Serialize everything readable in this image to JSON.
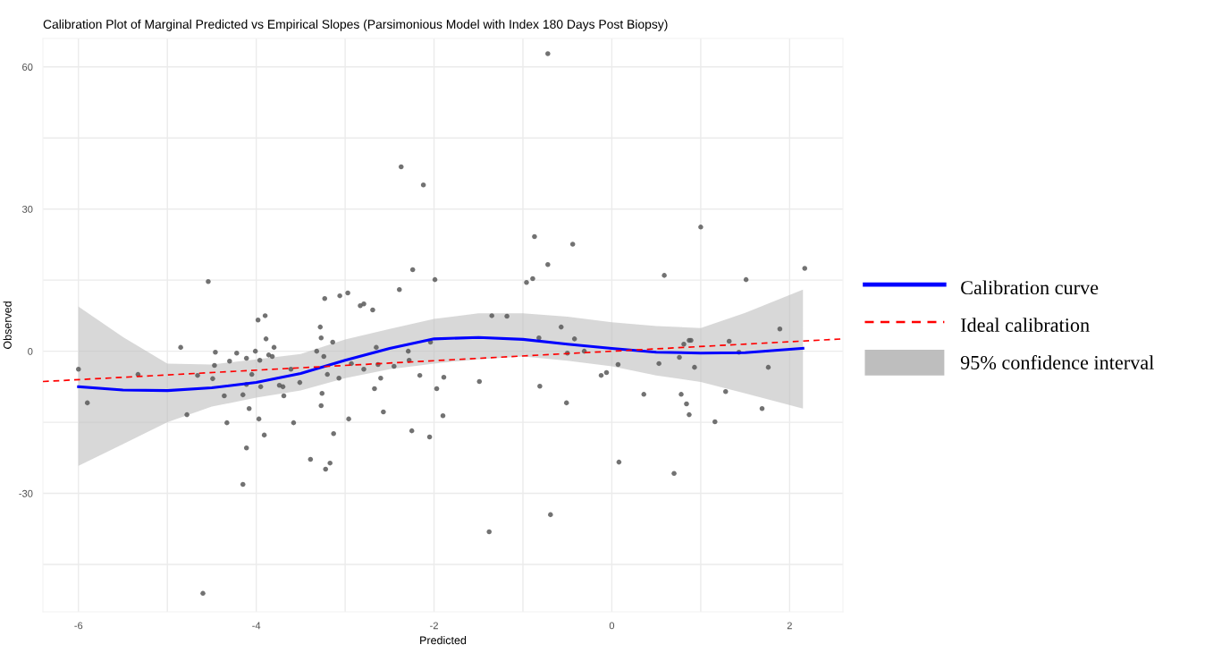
{
  "chart_data": {
    "type": "scatter",
    "title": "Calibration Plot of Marginal Predicted vs Empirical Slopes (Parsimonious Model with Index 180 Days Post Biopsy)",
    "xlabel": "Predicted",
    "ylabel": "Observed",
    "xlim": [
      -6.4,
      2.6
    ],
    "ylim": [
      -55,
      66
    ],
    "xticks": [
      -6,
      {
        "value": -5,
        "label": null
      },
      -4,
      {
        "value": -3,
        "label": null
      },
      -2,
      {
        "value": -1,
        "label": null
      },
      0,
      {
        "value": 1,
        "label": null
      },
      2
    ],
    "yticks": [
      {
        "value": -45,
        "label": null
      },
      -30,
      {
        "value": -15,
        "label": null
      },
      0,
      {
        "value": 15,
        "label": null
      },
      30,
      {
        "value": 45,
        "label": null
      },
      60
    ],
    "grid": true,
    "legend": "right",
    "series": [
      {
        "color": "#595959",
        "marker": "circle",
        "x": [
          -6.0,
          -5.9,
          -5.33,
          -4.85,
          -4.78,
          -4.66,
          -4.6,
          -4.54,
          -4.49,
          -4.47,
          -4.46,
          -4.36,
          -4.33,
          -4.3,
          -4.22,
          -4.15,
          -4.15,
          -4.11,
          -4.11,
          -4.11,
          -4.08,
          -4.05,
          -4.01,
          -3.98,
          -3.97,
          -3.96,
          -3.95,
          -3.91,
          -3.9,
          -3.89,
          -3.86,
          -3.82,
          -3.8,
          -3.74,
          -3.7,
          -3.69,
          -3.61,
          -3.58,
          -3.51,
          -3.39,
          -3.32,
          -3.28,
          -3.27,
          -3.27,
          -3.26,
          -3.24,
          -3.23,
          -3.22,
          -3.2,
          -3.17,
          -3.14,
          -3.13,
          -3.07,
          -3.06,
          -2.97,
          -2.96,
          -2.93,
          -2.83,
          -2.79,
          -2.79,
          -2.69,
          -2.67,
          -2.65,
          -2.63,
          -2.6,
          -2.57,
          -2.45,
          -2.39,
          -2.37,
          -2.29,
          -2.28,
          -2.25,
          -2.24,
          -2.16,
          -2.12,
          -2.05,
          -2.04,
          -1.99,
          -1.97,
          -1.9,
          -1.89,
          -1.49,
          -1.38,
          -1.35,
          -1.18,
          -0.96,
          -0.89,
          -0.87,
          -0.82,
          -0.81,
          -0.72,
          -0.72,
          -0.69,
          -0.57,
          -0.51,
          -0.5,
          -0.44,
          -0.42,
          -0.31,
          -0.12,
          -0.06,
          0.07,
          0.08,
          0.36,
          0.53,
          0.59,
          0.7,
          0.76,
          0.78,
          0.81,
          0.84,
          0.87,
          0.89,
          0.87,
          0.93,
          1.0,
          1.16,
          1.28,
          1.32,
          1.43,
          1.51,
          1.69,
          1.76,
          1.89,
          2.17
        ],
        "values": [
          -3.8,
          -10.9,
          -4.9,
          0.8,
          -13.4,
          -5.1,
          -51.1,
          14.7,
          -5.8,
          -3.0,
          -0.2,
          -9.4,
          -15.1,
          -2.1,
          -0.4,
          -9.2,
          -28.1,
          -1.5,
          -7.0,
          -20.4,
          -12.1,
          -4.9,
          0.0,
          6.6,
          -14.3,
          -1.9,
          -7.5,
          -17.7,
          7.5,
          2.6,
          -0.8,
          -1.1,
          0.8,
          -7.2,
          -7.5,
          -9.4,
          -3.8,
          -15.1,
          -6.6,
          -22.8,
          0.0,
          5.1,
          2.8,
          -11.5,
          -8.9,
          -1.1,
          11.1,
          -24.9,
          -4.9,
          -23.6,
          1.9,
          -17.4,
          -5.7,
          11.7,
          12.3,
          -14.3,
          -2.6,
          9.6,
          10.0,
          -3.8,
          8.7,
          -7.9,
          0.8,
          -2.8,
          -5.7,
          -12.8,
          -3.2,
          13.0,
          38.9,
          0.0,
          -1.9,
          -16.8,
          17.2,
          -5.1,
          35.1,
          -18.1,
          1.9,
          15.1,
          -7.9,
          -13.6,
          -5.5,
          -6.4,
          -38.1,
          7.5,
          7.4,
          14.5,
          15.3,
          24.2,
          2.8,
          -7.4,
          62.8,
          18.3,
          -34.5,
          5.1,
          -10.9,
          -0.4,
          22.6,
          2.6,
          0.0,
          -5.1,
          -4.5,
          -2.8,
          -23.4,
          -9.1,
          -2.6,
          16.0,
          -25.8,
          -1.3,
          -9.1,
          1.5,
          -11.1,
          2.3,
          2.3,
          -13.4,
          -3.4,
          26.2,
          -14.9,
          -8.5,
          2.1,
          -0.2,
          15.1,
          -12.1,
          -3.4,
          4.7,
          17.5
        ]
      },
      {
        "type": "line",
        "name": "Calibration curve",
        "color": "#0000ff",
        "line_style": "solid",
        "x": [
          -6,
          -5.5,
          -5,
          -4.5,
          -4,
          -3.5,
          -3,
          -2.5,
          -2,
          -1.5,
          -1,
          -0.5,
          0,
          0.5,
          1,
          1.5,
          2.15
        ],
        "values": [
          -7.5,
          -8.2,
          -8.3,
          -7.7,
          -6.6,
          -4.7,
          -1.9,
          0.6,
          2.6,
          2.9,
          2.5,
          1.5,
          0.6,
          -0.2,
          -0.4,
          -0.3,
          0.6
        ],
        "lower": [
          -24.2,
          -19.6,
          -15.0,
          -11.7,
          -9.8,
          -8.3,
          -5.7,
          -3.8,
          -2.6,
          -1.7,
          -1.1,
          -2.0,
          -3.2,
          -5.1,
          -6.5,
          -8.9,
          -12.1
        ],
        "upper": [
          9.4,
          3.0,
          -2.6,
          -2.8,
          -1.7,
          -0.6,
          2.5,
          4.7,
          6.8,
          8.0,
          8.0,
          7.3,
          6.1,
          5.3,
          4.9,
          8.1,
          13.0
        ]
      },
      {
        "type": "line",
        "name": "Ideal calibration",
        "color": "#ff0000",
        "line_style": "dashed",
        "x": [
          -6.4,
          2.6
        ],
        "values": [
          -6.4,
          2.6
        ]
      }
    ],
    "annotations": [
      "95% confidence interval"
    ]
  }
}
